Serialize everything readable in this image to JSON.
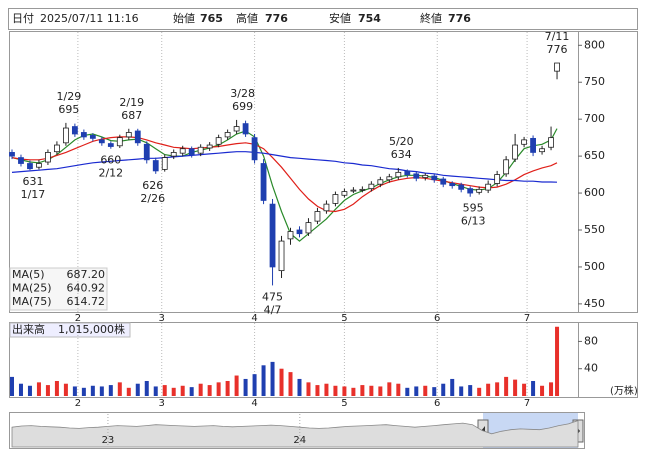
{
  "header": {
    "fields": [
      {
        "label": "日付",
        "value": "2025/07/11 11:16",
        "color": "#222"
      },
      {
        "label": "始値",
        "value": 765,
        "color": "#222"
      },
      {
        "label": "高値",
        "value": 776,
        "color": "#e0201a"
      },
      {
        "label": "安値",
        "value": 754,
        "color": "#1a8a1a"
      },
      {
        "label": "終値",
        "value": 776,
        "color": "#222"
      }
    ]
  },
  "chart_data": {
    "type": "candlestick",
    "x": [
      "1/10",
      "1/13",
      "1/16",
      "1/19",
      "1/22",
      "1/25",
      "1/28",
      "1/31",
      "2/3",
      "2/6",
      "2/9",
      "2/12",
      "2/15",
      "2/18",
      "2/21",
      "2/24",
      "2/27",
      "3/2",
      "3/5",
      "3/8",
      "3/11",
      "3/14",
      "3/17",
      "3/20",
      "3/23",
      "3/26",
      "3/29",
      "4/1",
      "4/4",
      "4/7",
      "4/10",
      "4/13",
      "4/16",
      "4/19",
      "4/22",
      "4/25",
      "4/28",
      "5/1",
      "5/4",
      "5/7",
      "5/10",
      "5/13",
      "5/16",
      "5/19",
      "5/22",
      "5/25",
      "5/28",
      "5/31",
      "6/3",
      "6/6",
      "6/9",
      "6/12",
      "6/15",
      "6/18",
      "6/21",
      "6/24",
      "6/27",
      "6/30",
      "7/3",
      "7/6",
      "7/9",
      "7/11"
    ],
    "open": [
      655,
      648,
      640,
      635,
      642,
      656,
      668,
      690,
      682,
      678,
      672,
      667,
      664,
      676,
      684,
      666,
      644,
      632,
      650,
      654,
      660,
      654,
      661,
      666,
      676,
      684,
      694,
      675,
      640,
      585,
      495,
      538,
      550,
      546,
      562,
      576,
      586,
      597,
      603,
      605,
      606,
      612,
      618,
      622,
      630,
      626,
      621,
      623,
      619,
      613,
      611,
      606,
      601,
      604,
      613,
      626,
      646,
      666,
      674,
      656,
      662,
      765
    ],
    "high": [
      659,
      652,
      644,
      645,
      659,
      670,
      695,
      694,
      686,
      681,
      676,
      670,
      679,
      687,
      687,
      670,
      648,
      652,
      659,
      664,
      663,
      666,
      669,
      679,
      686,
      699,
      698,
      680,
      646,
      592,
      542,
      553,
      555,
      566,
      580,
      590,
      602,
      606,
      608,
      609,
      616,
      622,
      626,
      634,
      632,
      629,
      627,
      626,
      622,
      616,
      614,
      609,
      609,
      617,
      630,
      650,
      680,
      676,
      678,
      664,
      690,
      776
    ],
    "low": [
      646,
      636,
      631,
      632,
      638,
      652,
      664,
      676,
      672,
      670,
      664,
      660,
      661,
      672,
      664,
      640,
      626,
      629,
      646,
      650,
      648,
      650,
      657,
      662,
      672,
      680,
      676,
      640,
      585,
      475,
      485,
      530,
      540,
      542,
      558,
      572,
      582,
      594,
      600,
      601,
      602,
      608,
      614,
      618,
      621,
      616,
      617,
      614,
      608,
      606,
      601,
      595,
      598,
      600,
      609,
      622,
      642,
      662,
      650,
      652,
      658,
      754
    ],
    "close": [
      650,
      640,
      633,
      640,
      655,
      665,
      688,
      680,
      676,
      674,
      668,
      663,
      675,
      682,
      668,
      645,
      630,
      648,
      655,
      660,
      652,
      662,
      665,
      675,
      682,
      690,
      680,
      645,
      590,
      500,
      535,
      548,
      545,
      560,
      575,
      585,
      598,
      602,
      604,
      605,
      612,
      618,
      622,
      628,
      625,
      620,
      624,
      618,
      612,
      610,
      605,
      600,
      605,
      612,
      625,
      645,
      665,
      672,
      655,
      660,
      675,
      776
    ],
    "up_color": "#ffffff",
    "down_color": "#1f3fb0",
    "xlim": [
      "1/9",
      "7/18"
    ],
    "xticks": [
      {
        "value": "2/1",
        "label": "2"
      },
      {
        "value": "3/1",
        "label": "3"
      },
      {
        "value": "4/1",
        "label": "4"
      },
      {
        "value": "5/1",
        "label": "5"
      },
      {
        "value": "6/1",
        "label": "6"
      },
      {
        "value": "7/1",
        "label": "7"
      }
    ],
    "ylim": [
      439,
      818
    ],
    "yticks": [
      450,
      500,
      550,
      600,
      650,
      700,
      750,
      800
    ],
    "grid": true,
    "series": [
      {
        "name": "MA(5)",
        "color": "#2a8a2a",
        "legend_value": 687.2,
        "legend_label": "687.20",
        "values": [
          648,
          645,
          642,
          641,
          645,
          652,
          662,
          672,
          678,
          680,
          676,
          671,
          670,
          672,
          673,
          668,
          660,
          652,
          650,
          650,
          655,
          658,
          661,
          665,
          672,
          680,
          684,
          676,
          650,
          610,
          575,
          545,
          535,
          545,
          555,
          565,
          578,
          590,
          598,
          603,
          607,
          613,
          618,
          622,
          624,
          624,
          623,
          621,
          617,
          613,
          609,
          605,
          604,
          606,
          614,
          628,
          645,
          660,
          664,
          666,
          672,
          687.2
        ]
      },
      {
        "name": "MA(25)",
        "color": "#e0201a",
        "legend_value": 640.92,
        "legend_label": "640.92",
        "values": [
          648,
          646,
          645,
          645,
          647,
          651,
          655,
          660,
          665,
          670,
          673,
          675,
          676,
          676,
          675,
          672,
          668,
          665,
          662,
          661,
          660,
          661,
          662,
          663,
          665,
          667,
          668,
          666,
          660,
          648,
          635,
          620,
          605,
          592,
          582,
          576,
          575,
          578,
          585,
          595,
          603,
          610,
          615,
          618,
          620,
          621,
          620,
          618,
          616,
          614,
          612,
          610,
          608,
          607,
          608,
          612,
          618,
          625,
          630,
          634,
          637,
          640.92
        ]
      },
      {
        "name": "MA(75)",
        "color": "#1a2ad0",
        "legend_value": 614.72,
        "legend_label": "614.72",
        "values": [
          628,
          629,
          630,
          631,
          632,
          633,
          635,
          637,
          639,
          641,
          642,
          643,
          644,
          645,
          646,
          647,
          647,
          648,
          649,
          650,
          651,
          652,
          653,
          654,
          655,
          656,
          656,
          655,
          654,
          652,
          650,
          648,
          647,
          646,
          645,
          644,
          643,
          641,
          640,
          638,
          637,
          635,
          633,
          632,
          630,
          629,
          627,
          626,
          624,
          623,
          622,
          621,
          620,
          619,
          618,
          617,
          617,
          616,
          616,
          615,
          615,
          614.72
        ]
      }
    ],
    "annotations": [
      {
        "date": "7/11",
        "value": 776,
        "side": "above"
      },
      {
        "date": "1/29",
        "value": 695,
        "side": "above"
      },
      {
        "date": "2/19",
        "value": 687,
        "side": "above"
      },
      {
        "date": "3/28",
        "value": 699,
        "side": "above"
      },
      {
        "date": "5/20",
        "value": 634,
        "side": "above"
      },
      {
        "date": "1/17",
        "value": 631,
        "side": "below"
      },
      {
        "date": "2/12",
        "value": 660,
        "side": "below"
      },
      {
        "date": "2/26",
        "value": 626,
        "side": "below"
      },
      {
        "date": "4/7",
        "value": 475,
        "side": "below"
      },
      {
        "date": "6/13",
        "value": 595,
        "side": "below"
      }
    ],
    "volume": {
      "title": "出来高",
      "last_label": "1,015,000株",
      "unit": "(万株)",
      "ylim": [
        0,
        107
      ],
      "yticks": [
        40,
        80
      ],
      "values": [
        28,
        18,
        15,
        20,
        16,
        22,
        18,
        14,
        12,
        15,
        14,
        16,
        20,
        12,
        18,
        22,
        14,
        16,
        12,
        15,
        13,
        18,
        16,
        20,
        22,
        30,
        25,
        32,
        45,
        50,
        40,
        35,
        25,
        20,
        16,
        18,
        15,
        14,
        12,
        16,
        15,
        14,
        20,
        18,
        12,
        14,
        15,
        13,
        18,
        25,
        14,
        16,
        12,
        18,
        20,
        28,
        24,
        18,
        22,
        15,
        20,
        101.5
      ],
      "up_color": "#e8302a",
      "down_color": "#1f3fb0"
    }
  },
  "navigator": {
    "values": [
      640,
      655,
      660,
      650,
      645,
      640,
      630,
      625,
      635,
      640,
      650,
      660,
      655,
      650,
      660,
      670,
      665,
      660,
      655,
      650,
      655,
      660,
      650,
      645,
      650,
      655,
      660,
      665,
      660,
      650,
      640,
      630,
      625,
      630,
      640,
      650,
      655,
      660,
      665,
      670,
      660,
      650,
      640,
      650,
      660,
      670,
      680,
      690,
      670,
      600,
      560,
      590,
      610,
      620,
      615,
      610,
      630,
      660,
      680,
      720
    ],
    "ylim": [
      400,
      800
    ],
    "xticks": [
      {
        "value": 10,
        "label": "23"
      },
      {
        "value": 30,
        "label": "24"
      }
    ]
  }
}
